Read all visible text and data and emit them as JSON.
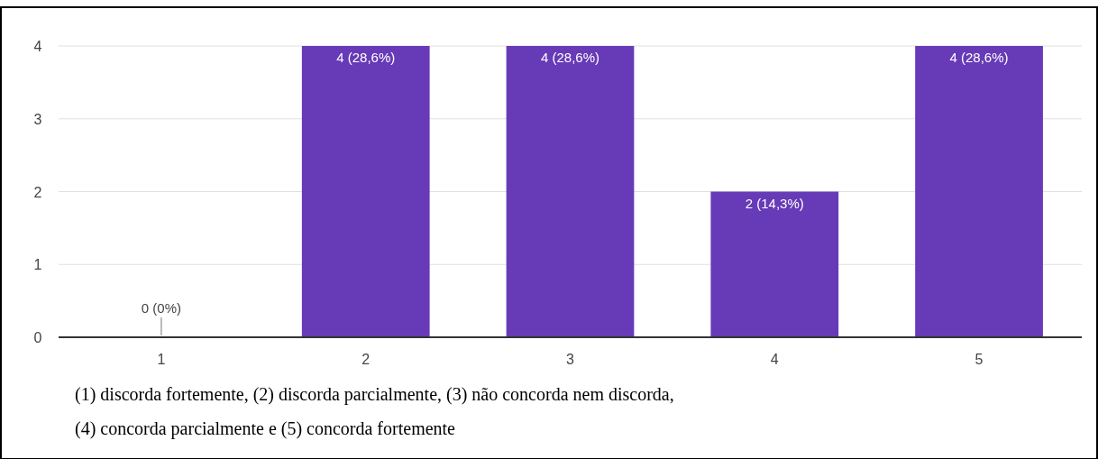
{
  "chart_data": {
    "type": "bar",
    "categories": [
      "1",
      "2",
      "3",
      "4",
      "5"
    ],
    "values": [
      0,
      4,
      4,
      2,
      4
    ],
    "value_labels": [
      "0 (0%)",
      "4 (28,6%)",
      "4 (28,6%)",
      "2 (14,3%)",
      "4 (28,6%)"
    ],
    "color": "#673ab7",
    "ylim": [
      0,
      4
    ],
    "yticks": [
      0,
      1,
      2,
      3,
      4
    ],
    "grid": "y",
    "annotations": [
      "(1) discorda fortemente, (2) discorda parcialmente, (3) não concorda nem discorda,",
      "(4) concorda parcialmente e (5) concorda fortemente"
    ]
  }
}
